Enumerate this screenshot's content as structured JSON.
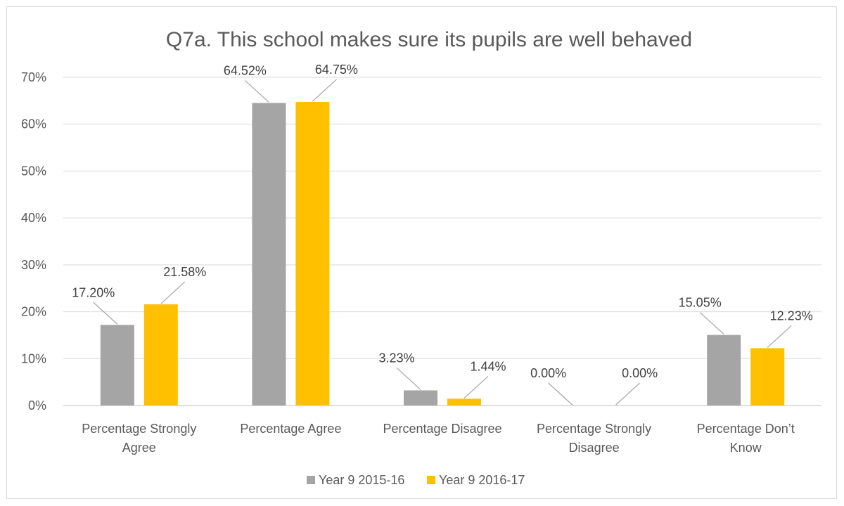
{
  "chart_data": {
    "type": "bar",
    "title": "Q7a. This school makes sure its pupils are well behaved",
    "categories": [
      [
        "Percentage Strongly",
        "Agree"
      ],
      [
        "Percentage Agree"
      ],
      [
        "Percentage Disagree"
      ],
      [
        "Percentage Strongly",
        "Disagree"
      ],
      [
        "Percentage Don’t",
        "Know"
      ]
    ],
    "series": [
      {
        "name": "Year 9 2015-16",
        "color": "#a5a5a5",
        "values": [
          17.2,
          64.52,
          3.23,
          0.0,
          15.05
        ],
        "labels": [
          "17.20%",
          "64.52%",
          "3.23%",
          "0.00%",
          "15.05%"
        ]
      },
      {
        "name": "Year 9 2016-17",
        "color": "#ffc000",
        "values": [
          21.58,
          64.75,
          1.44,
          0.0,
          12.23
        ],
        "labels": [
          "21.58%",
          "64.75%",
          "1.44%",
          "0.00%",
          "12.23%"
        ]
      }
    ],
    "ylim": [
      0,
      70
    ],
    "yticks": [
      "0%",
      "10%",
      "20%",
      "30%",
      "40%",
      "50%",
      "60%",
      "70%"
    ],
    "grid": true,
    "legend_position": "bottom"
  }
}
